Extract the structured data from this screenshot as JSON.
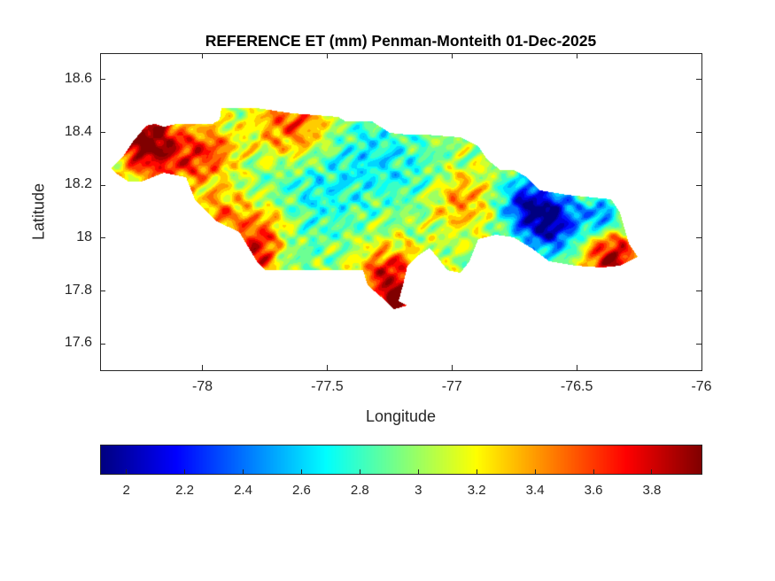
{
  "chart_data": {
    "type": "heatmap",
    "title": "REFERENCE ET (mm) Penman-Monteith 01-Dec-2025",
    "xlabel": "Longitude",
    "ylabel": "Latitude",
    "xlim": [
      -78.41,
      -76
    ],
    "ylim": [
      17.5,
      18.7
    ],
    "xticks": [
      -78,
      -77.5,
      -77,
      -76.5,
      -76
    ],
    "xtick_labels": [
      "-78",
      "-77.5",
      "-77",
      "-76.5",
      "-76"
    ],
    "yticks": [
      17.6,
      17.8,
      18,
      18.2,
      18.4,
      18.6
    ],
    "ytick_labels": [
      "17.6",
      "17.8",
      "18",
      "18.2",
      "18.4",
      "18.6"
    ],
    "grid": false,
    "colormap": "jet",
    "colorbar": {
      "location": "bottom",
      "clim": [
        1.91,
        3.97
      ],
      "ticks": [
        2,
        2.2,
        2.4,
        2.6,
        2.8,
        3,
        3.2,
        3.4,
        3.6,
        3.8
      ],
      "tick_labels": [
        "2",
        "2.2",
        "2.4",
        "2.6",
        "2.8",
        "3",
        "3.2",
        "3.4",
        "3.6",
        "3.8"
      ]
    }
  }
}
